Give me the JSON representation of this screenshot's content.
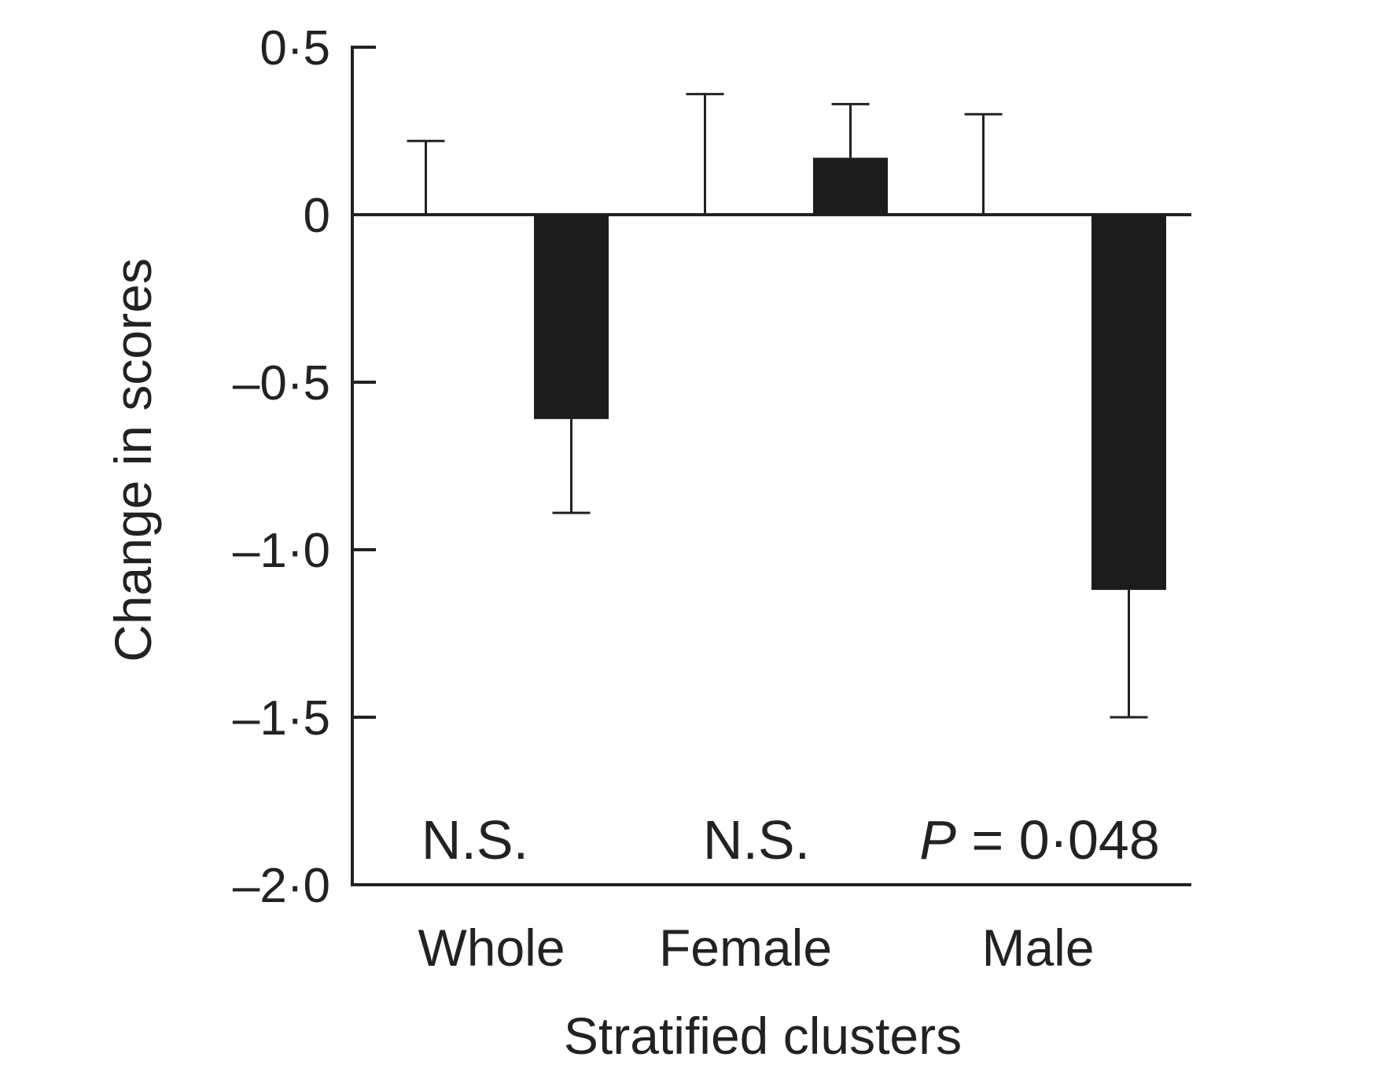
{
  "chart_data": {
    "type": "bar",
    "xlabel": "Stratified clusters",
    "ylabel": "Change in scores",
    "ylim": [
      -2.0,
      0.5
    ],
    "yticks": [
      0.5,
      0,
      -0.5,
      -1.0,
      -1.5,
      -2.0
    ],
    "ytick_labels": [
      "0·5",
      "0",
      "–0·5",
      "–1·0",
      "–1·5",
      "–2·0"
    ],
    "categories": [
      "Whole",
      "Female",
      "Male"
    ],
    "series": [
      {
        "color": "#ffffff",
        "values": [
          0.0,
          0.0,
          0.0
        ],
        "error_upper": [
          0.22,
          0.36,
          0.3
        ],
        "error_lower": [
          null,
          null,
          null
        ]
      },
      {
        "color": "#1c1c1c",
        "values": [
          -0.61,
          0.17,
          -1.12
        ],
        "error_upper": [
          null,
          0.33,
          null
        ],
        "error_lower": [
          -0.89,
          null,
          -1.5
        ]
      }
    ],
    "annotations": [
      {
        "category": "Whole",
        "text": "N.S."
      },
      {
        "category": "Female",
        "text": "N.S."
      },
      {
        "category": "Male",
        "prefix": "P",
        "text": " = 0·048"
      }
    ],
    "grid": false,
    "legend": "none"
  }
}
